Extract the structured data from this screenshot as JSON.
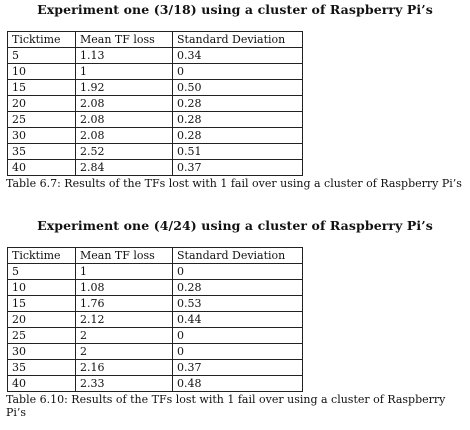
{
  "sections": [
    {
      "heading": "Experiment one (3/18) using a cluster of Raspberry Pi’s",
      "columns": [
        "Ticktime",
        "Mean TF loss",
        "Standard Deviation"
      ],
      "rows": [
        [
          "5",
          "1.13",
          "0.34"
        ],
        [
          "10",
          "1",
          "0"
        ],
        [
          "15",
          "1.92",
          "0.50"
        ],
        [
          "20",
          "2.08",
          "0.28"
        ],
        [
          "25",
          "2.08",
          "0.28"
        ],
        [
          "30",
          "2.08",
          "0.28"
        ],
        [
          "35",
          "2.52",
          "0.51"
        ],
        [
          "40",
          "2.84",
          "0.37"
        ]
      ],
      "caption": "Table 6.7: Results of the TFs lost with 1 fail over using a cluster of Raspberry Pi’s"
    },
    {
      "heading": "Experiment one (4/24) using a cluster of Raspberry Pi’s",
      "columns": [
        "Ticktime",
        "Mean TF loss",
        "Standard Deviation"
      ],
      "rows": [
        [
          "5",
          "1",
          "0"
        ],
        [
          "10",
          "1.08",
          "0.28"
        ],
        [
          "15",
          "1.76",
          "0.53"
        ],
        [
          "20",
          "2.12",
          "0.44"
        ],
        [
          "25",
          "2",
          "0"
        ],
        [
          "30",
          "2",
          "0"
        ],
        [
          "35",
          "2.16",
          "0.37"
        ],
        [
          "40",
          "2.33",
          "0.48"
        ]
      ],
      "caption": "Table 6.10: Results of the TFs lost with 1 fail over using a cluster of Raspberry Pi’s"
    }
  ]
}
